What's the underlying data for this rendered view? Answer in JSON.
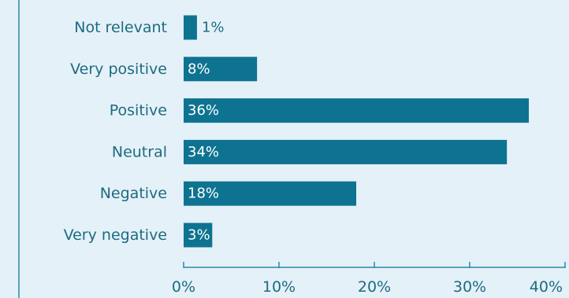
{
  "colors": {
    "background": "#e4f1f8",
    "bar": "#0e7391",
    "axis": "#2b8aa6",
    "text": "#1d6b80",
    "bar_label_inside": "#ffffff",
    "bar_label_outside": "#1d6b80"
  },
  "chart_data": {
    "type": "bar",
    "orientation": "horizontal",
    "title": "",
    "xlabel": "",
    "ylabel": "",
    "categories": [
      "Not relevant",
      "Very positive",
      "Positive",
      "Neutral",
      "Negative",
      "Very negative"
    ],
    "values": [
      1.4,
      7.7,
      36.2,
      33.9,
      18.1,
      3.0
    ],
    "data_labels": [
      "1%",
      "8%",
      "36%",
      "34%",
      "18%",
      "3%"
    ],
    "xlim": [
      0,
      40
    ],
    "xticks": [
      0,
      10,
      20,
      30,
      40
    ],
    "xtick_labels": [
      "0%",
      "10%",
      "20%",
      "30%",
      "40%"
    ],
    "grid": false,
    "legend": "none"
  }
}
